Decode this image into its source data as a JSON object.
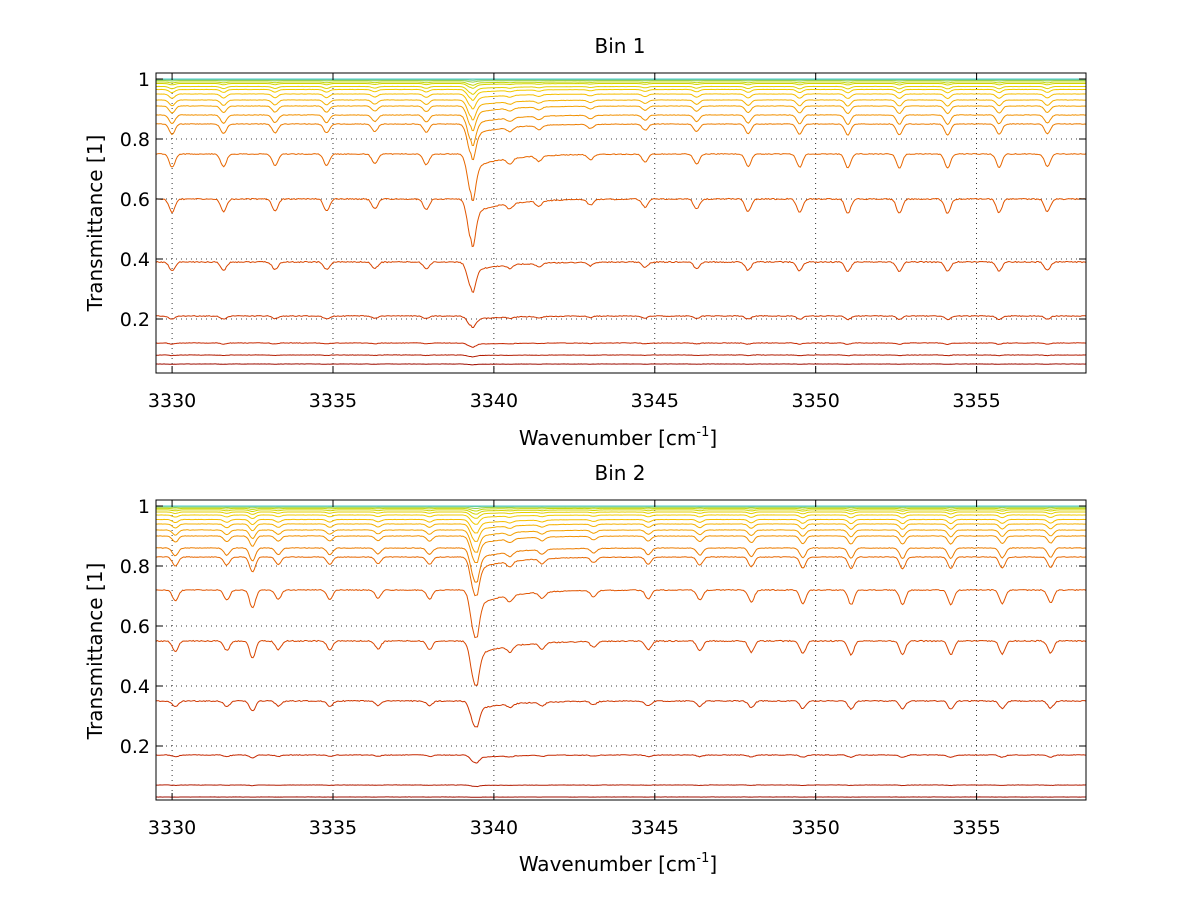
{
  "figure": {
    "background": "#ffffff",
    "grid": "dotted",
    "line_colormap": [
      "#8b0000",
      "#c82a00",
      "#e45a00",
      "#f39a00",
      "#f6c800",
      "#c8d800",
      "#4fc8c8"
    ]
  },
  "chart_data": [
    {
      "type": "line",
      "title": "Bin 1",
      "xlabel": "Wavenumber [cm",
      "xlabel_sup": "-1",
      "xlabel_suffix": "]",
      "ylabel": "Transmittance [1]",
      "xlim": [
        3329.5,
        3358.4
      ],
      "ylim": [
        0.02,
        1.02
      ],
      "xticks": [
        3330,
        3335,
        3340,
        3345,
        3350,
        3355
      ],
      "xtick_labels": [
        "3330",
        "3335",
        "3340",
        "3345",
        "3350",
        "3355"
      ],
      "yticks": [
        0.2,
        0.4,
        0.6,
        0.8,
        1
      ],
      "ytick_labels": [
        "0.2",
        "0.4",
        "0.6",
        "0.8",
        "1"
      ],
      "grid": true,
      "absorption_lines": [
        {
          "x": 3330.0,
          "s": 0.75
        },
        {
          "x": 3331.6,
          "s": 0.7
        },
        {
          "x": 3333.2,
          "s": 0.65
        },
        {
          "x": 3334.8,
          "s": 0.65
        },
        {
          "x": 3336.3,
          "s": 0.55
        },
        {
          "x": 3337.9,
          "s": 0.6
        },
        {
          "x": 3339.3,
          "s": 2.2
        },
        {
          "x": 3340.5,
          "s": 0.3
        },
        {
          "x": 3341.4,
          "s": 0.3
        },
        {
          "x": 3343.0,
          "s": 0.3
        },
        {
          "x": 3344.7,
          "s": 0.45
        },
        {
          "x": 3346.3,
          "s": 0.55
        },
        {
          "x": 3347.9,
          "s": 0.7
        },
        {
          "x": 3349.5,
          "s": 0.75
        },
        {
          "x": 3351.0,
          "s": 0.8
        },
        {
          "x": 3352.6,
          "s": 0.8
        },
        {
          "x": 3354.1,
          "s": 0.8
        },
        {
          "x": 3355.7,
          "s": 0.75
        },
        {
          "x": 3357.2,
          "s": 0.7
        }
      ],
      "series_baselines": [
        0.02,
        0.05,
        0.08,
        0.12,
        0.21,
        0.39,
        0.6,
        0.75,
        0.85,
        0.88,
        0.91,
        0.93,
        0.95,
        0.965,
        0.975,
        0.985,
        0.99,
        0.995,
        0.998,
        1.0
      ]
    },
    {
      "type": "line",
      "title": "Bin 2",
      "xlabel": "Wavenumber [cm",
      "xlabel_sup": "-1",
      "xlabel_suffix": "]",
      "ylabel": "Transmittance [1]",
      "xlim": [
        3329.5,
        3358.4
      ],
      "ylim": [
        0.02,
        1.02
      ],
      "xticks": [
        3330,
        3335,
        3340,
        3345,
        3350,
        3355
      ],
      "xtick_labels": [
        "3330",
        "3335",
        "3340",
        "3345",
        "3350",
        "3355"
      ],
      "yticks": [
        0.2,
        0.4,
        0.6,
        0.8,
        1
      ],
      "ytick_labels": [
        "0.2",
        "0.4",
        "0.6",
        "0.8",
        "1"
      ],
      "grid": true,
      "absorption_lines": [
        {
          "x": 3330.1,
          "s": 0.6
        },
        {
          "x": 3331.7,
          "s": 0.55
        },
        {
          "x": 3332.5,
          "s": 1.0
        },
        {
          "x": 3333.3,
          "s": 0.5
        },
        {
          "x": 3334.9,
          "s": 0.5
        },
        {
          "x": 3336.4,
          "s": 0.45
        },
        {
          "x": 3338.0,
          "s": 0.5
        },
        {
          "x": 3339.4,
          "s": 2.4
        },
        {
          "x": 3340.5,
          "s": 0.35
        },
        {
          "x": 3341.5,
          "s": 0.35
        },
        {
          "x": 3343.1,
          "s": 0.35
        },
        {
          "x": 3344.8,
          "s": 0.5
        },
        {
          "x": 3346.4,
          "s": 0.55
        },
        {
          "x": 3348.0,
          "s": 0.65
        },
        {
          "x": 3349.6,
          "s": 0.75
        },
        {
          "x": 3351.1,
          "s": 0.8
        },
        {
          "x": 3352.7,
          "s": 0.8
        },
        {
          "x": 3354.2,
          "s": 0.8
        },
        {
          "x": 3355.8,
          "s": 0.75
        },
        {
          "x": 3357.3,
          "s": 0.7
        }
      ],
      "series_baselines": [
        0.02,
        0.03,
        0.07,
        0.17,
        0.35,
        0.55,
        0.72,
        0.83,
        0.86,
        0.9,
        0.92,
        0.94,
        0.955,
        0.97,
        0.98,
        0.987,
        0.992,
        0.996,
        0.999,
        1.0
      ]
    }
  ]
}
